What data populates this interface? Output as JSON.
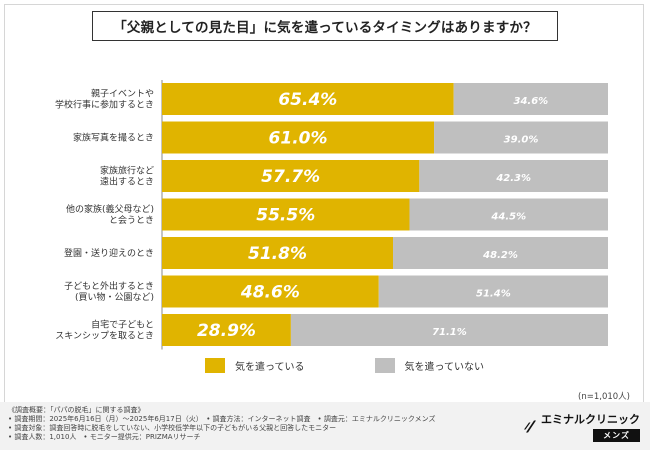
{
  "header": {
    "title": "「父親としての見た目」に気を遣っているタイミングはありますか？"
  },
  "chart_data": {
    "type": "bar",
    "orientation": "horizontal",
    "stacked": true,
    "normalized": true,
    "title": "「父親としての見た目」に気を遣っているタイミングはありますか？",
    "categories": [
      {
        "lines": [
          "親子イベントや",
          "学校行事に参加するとき"
        ]
      },
      {
        "lines": [
          "家族写真を撮るとき"
        ]
      },
      {
        "lines": [
          "家族旅行など",
          "遠出するとき"
        ]
      },
      {
        "lines": [
          "他の家族(義父母など)",
          "と会うとき"
        ]
      },
      {
        "lines": [
          "登園・送り迎えのとき"
        ]
      },
      {
        "lines": [
          "子どもと外出するとき",
          "(買い物・公園など)"
        ]
      },
      {
        "lines": [
          "自宅で子どもと",
          "スキンシップを取るとき"
        ]
      }
    ],
    "series": [
      {
        "name": "気を遣っている",
        "color": "#e0b400",
        "values": [
          65.4,
          61.0,
          57.7,
          55.5,
          51.8,
          48.6,
          28.9
        ],
        "labels": [
          "65.4%",
          "61.0%",
          "57.7%",
          "55.5%",
          "51.8%",
          "48.6%",
          "28.9%"
        ]
      },
      {
        "name": "気を遣っていない",
        "color": "#bfbfbf",
        "values": [
          34.6,
          39.0,
          42.3,
          44.5,
          48.2,
          51.4,
          71.1
        ],
        "labels": [
          "34.6%",
          "39.0%",
          "42.3%",
          "44.5%",
          "48.2%",
          "51.4%",
          "71.1%"
        ]
      }
    ],
    "xlim": [
      0,
      100
    ],
    "legend": "bottom",
    "grid": false
  },
  "legend": {
    "items": [
      {
        "label": "気を遣っている",
        "color": "#e0b400"
      },
      {
        "label": "気を遣っていない",
        "color": "#bfbfbf"
      }
    ]
  },
  "sample_note": "(n=1,010人)",
  "footer": {
    "notes": [
      "《調査概要：「パパの脱毛」に関する調査》",
      "• 調査期間：2025年6月16日（月）～2025年6月17日（火）　• 調査方法：インターネット調査　• 調査元：エミナルクリニックメンズ",
      "• 調査対象：調査回答時に脱毛をしていない、小学校低学年以下の子どもがいる父親と回答したモニター",
      "• 調査人数：1,010人　• モニター提供元：PRIZMAリサーチ"
    ]
  },
  "logo": {
    "main": "エミナルクリニック",
    "sub": "メンズ",
    "icon": "eminal-logo-icon"
  }
}
